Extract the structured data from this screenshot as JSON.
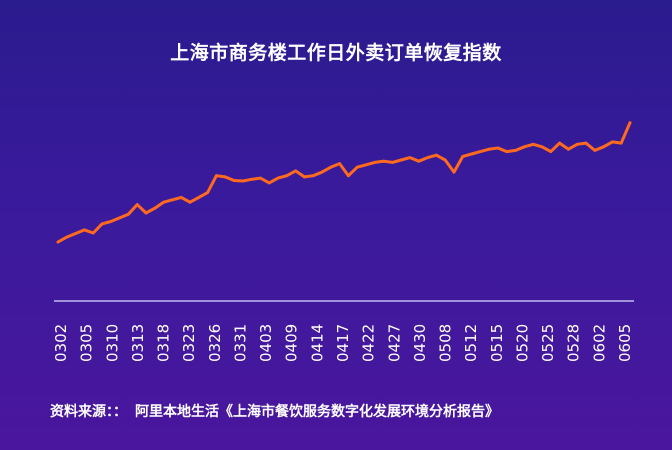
{
  "title": "上海市商务楼工作日外卖订单恢复指数",
  "source": {
    "label": "资料来源：：",
    "text": "阿里本地生活《上海市餐饮服务数字化发展环境分析报告》"
  },
  "colors": {
    "line": "#ff6a1f",
    "axis": "#d9d9ff",
    "text": "#ffffff"
  },
  "chart_data": {
    "type": "line",
    "title": "上海市商务楼工作日外卖订单恢复指数",
    "xlabel": "",
    "ylabel": "",
    "grid": false,
    "legend": "none",
    "ylim": [
      0,
      100
    ],
    "x_tick_labels": [
      "0302",
      "0305",
      "0310",
      "0313",
      "0318",
      "0323",
      "0326",
      "0331",
      "0403",
      "0409",
      "0414",
      "0417",
      "0422",
      "0427",
      "0430",
      "0508",
      "0512",
      "0515",
      "0520",
      "0525",
      "0528",
      "0602",
      "0605"
    ],
    "series": [
      {
        "values": [
          24.5,
          26.5,
          28,
          29.5,
          28.2,
          32,
          33,
          34.5,
          36,
          40,
          36.5,
          38.5,
          41,
          42,
          43,
          41,
          43,
          45,
          52,
          51.5,
          50,
          49.8,
          50.5,
          51,
          49,
          51,
          52,
          54,
          51.5,
          52,
          53.5,
          55.5,
          57,
          52,
          55.5,
          56.5,
          57.5,
          58,
          57.5,
          58.5,
          59.5,
          58,
          59.5,
          60.5,
          58.5,
          53.5,
          60,
          61,
          62,
          63,
          63.5,
          62,
          62.5,
          64,
          65,
          64,
          62,
          65.5,
          63,
          65,
          65.5,
          62.5,
          64,
          66,
          65.5,
          74
        ]
      }
    ]
  }
}
